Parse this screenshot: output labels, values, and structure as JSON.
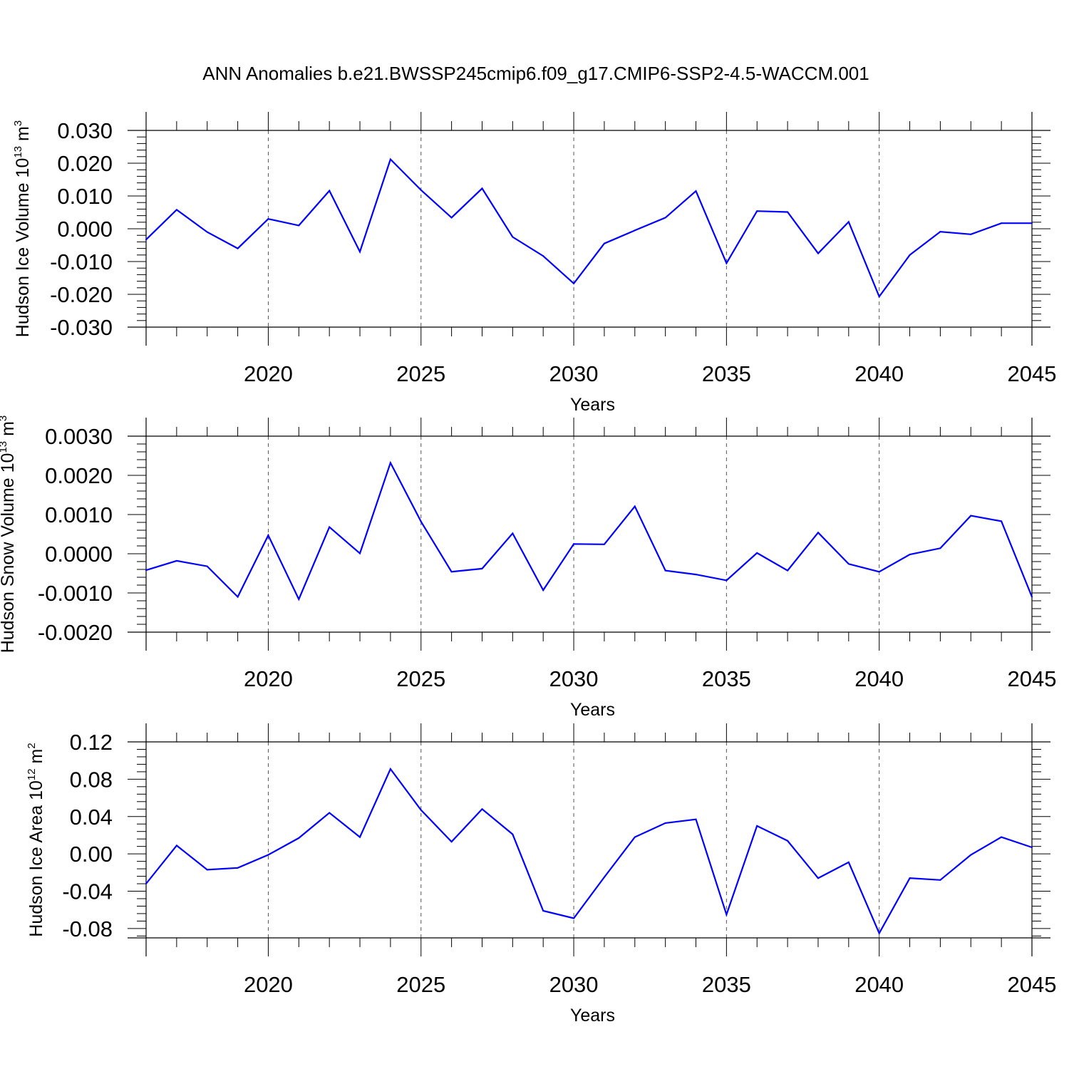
{
  "title": "ANN Anomalies b.e21.BWSSP245cmip6.f09_g17.CMIP6-SSP2-4.5-WACCM.001",
  "colors": {
    "line": "#0000ff",
    "axis": "#000000",
    "grid": "#555555"
  },
  "chart_data": [
    {
      "type": "line",
      "xlabel": "Years",
      "ylabel": "Hudson Ice Volume 10",
      "ylabel_exp": "13",
      "ylabel_unit": " m",
      "ylabel_unit_exp": "3",
      "xlim": [
        2016,
        2045
      ],
      "ylim": [
        -0.03,
        0.03
      ],
      "yticks": [
        "0.030",
        "0.020",
        "0.010",
        "0.000",
        "-0.010",
        "-0.020",
        "-0.030"
      ],
      "ytick_values": [
        0.03,
        0.02,
        0.01,
        0.0,
        -0.01,
        -0.02,
        -0.03
      ],
      "xticks": [
        "2020",
        "2025",
        "2030",
        "2035",
        "2040",
        "2045"
      ],
      "xtick_values": [
        2020,
        2025,
        2030,
        2035,
        2040,
        2045
      ],
      "series": [
        {
          "name": "Hudson Ice Volume",
          "x": [
            2016,
            2017,
            2018,
            2019,
            2020,
            2021,
            2022,
            2023,
            2024,
            2025,
            2026,
            2027,
            2028,
            2029,
            2030,
            2031,
            2032,
            2033,
            2034,
            2035,
            2036,
            2037,
            2038,
            2039,
            2040,
            2041,
            2042,
            2043,
            2044,
            2045
          ],
          "y": [
            -0.0033,
            0.0058,
            -0.001,
            -0.006,
            0.003,
            0.001,
            0.0116,
            -0.007,
            0.0212,
            0.0118,
            0.0034,
            0.0123,
            -0.0025,
            -0.0083,
            -0.0167,
            -0.0045,
            -0.0005,
            0.0034,
            0.0115,
            -0.0105,
            0.0054,
            0.0051,
            -0.0075,
            0.0021,
            -0.0207,
            -0.008,
            -0.0009,
            -0.0017,
            0.0017,
            0.0017
          ]
        }
      ]
    },
    {
      "type": "line",
      "xlabel": "Years",
      "ylabel": "Hudson Snow Volume 10",
      "ylabel_exp": "13",
      "ylabel_unit": " m",
      "ylabel_unit_exp": "3",
      "xlim": [
        2016,
        2045
      ],
      "ylim": [
        -0.002,
        0.003
      ],
      "yticks": [
        "0.0030",
        "0.0020",
        "0.0010",
        "0.0000",
        "-0.0010",
        "-0.0020"
      ],
      "ytick_values": [
        0.003,
        0.002,
        0.001,
        0.0,
        -0.001,
        -0.002
      ],
      "xticks": [
        "2020",
        "2025",
        "2030",
        "2035",
        "2040",
        "2045"
      ],
      "xtick_values": [
        2020,
        2025,
        2030,
        2035,
        2040,
        2045
      ],
      "series": [
        {
          "name": "Hudson Snow Volume",
          "x": [
            2016,
            2017,
            2018,
            2019,
            2020,
            2021,
            2022,
            2023,
            2024,
            2025,
            2026,
            2027,
            2028,
            2029,
            2030,
            2031,
            2032,
            2033,
            2034,
            2035,
            2036,
            2037,
            2038,
            2039,
            2040,
            2041,
            2042,
            2043,
            2044,
            2045
          ],
          "y": [
            -0.00042,
            -0.00018,
            -0.00032,
            -0.0011,
            0.00047,
            -0.00116,
            0.00068,
            1e-05,
            0.00232,
            0.00082,
            -0.00046,
            -0.00038,
            0.00052,
            -0.00093,
            0.00025,
            0.00024,
            0.00121,
            -0.00043,
            -0.00053,
            -0.00068,
            2e-05,
            -0.00043,
            0.00054,
            -0.00026,
            -0.00046,
            -2e-05,
            0.00014,
            0.00097,
            0.00083,
            -0.0011
          ]
        }
      ]
    },
    {
      "type": "line",
      "xlabel": "Years",
      "ylabel": "Hudson Ice Area 10",
      "ylabel_exp": "12",
      "ylabel_unit": " m",
      "ylabel_unit_exp": "2",
      "xlim": [
        2016,
        2045
      ],
      "ylim": [
        -0.09,
        0.12
      ],
      "yticks": [
        "0.12",
        "0.08",
        "0.04",
        "0.00",
        "-0.04",
        "-0.08"
      ],
      "ytick_values": [
        0.12,
        0.08,
        0.04,
        0.0,
        -0.04,
        -0.08
      ],
      "xticks": [
        "2020",
        "2025",
        "2030",
        "2035",
        "2040",
        "2045"
      ],
      "xtick_values": [
        2020,
        2025,
        2030,
        2035,
        2040,
        2045
      ],
      "series": [
        {
          "name": "Hudson Ice Area",
          "x": [
            2016,
            2017,
            2018,
            2019,
            2020,
            2021,
            2022,
            2023,
            2024,
            2025,
            2026,
            2027,
            2028,
            2029,
            2030,
            2031,
            2032,
            2033,
            2034,
            2035,
            2036,
            2037,
            2038,
            2039,
            2040,
            2041,
            2042,
            2043,
            2044,
            2045
          ],
          "y": [
            -0.032,
            0.009,
            -0.017,
            -0.015,
            -0.001,
            0.017,
            0.044,
            0.018,
            0.091,
            0.047,
            0.013,
            0.048,
            0.021,
            -0.061,
            -0.069,
            -0.025,
            0.018,
            0.033,
            0.037,
            -0.065,
            0.03,
            0.014,
            -0.026,
            -0.009,
            -0.085,
            -0.026,
            -0.028,
            -0.001,
            0.018,
            0.007
          ]
        }
      ]
    }
  ]
}
